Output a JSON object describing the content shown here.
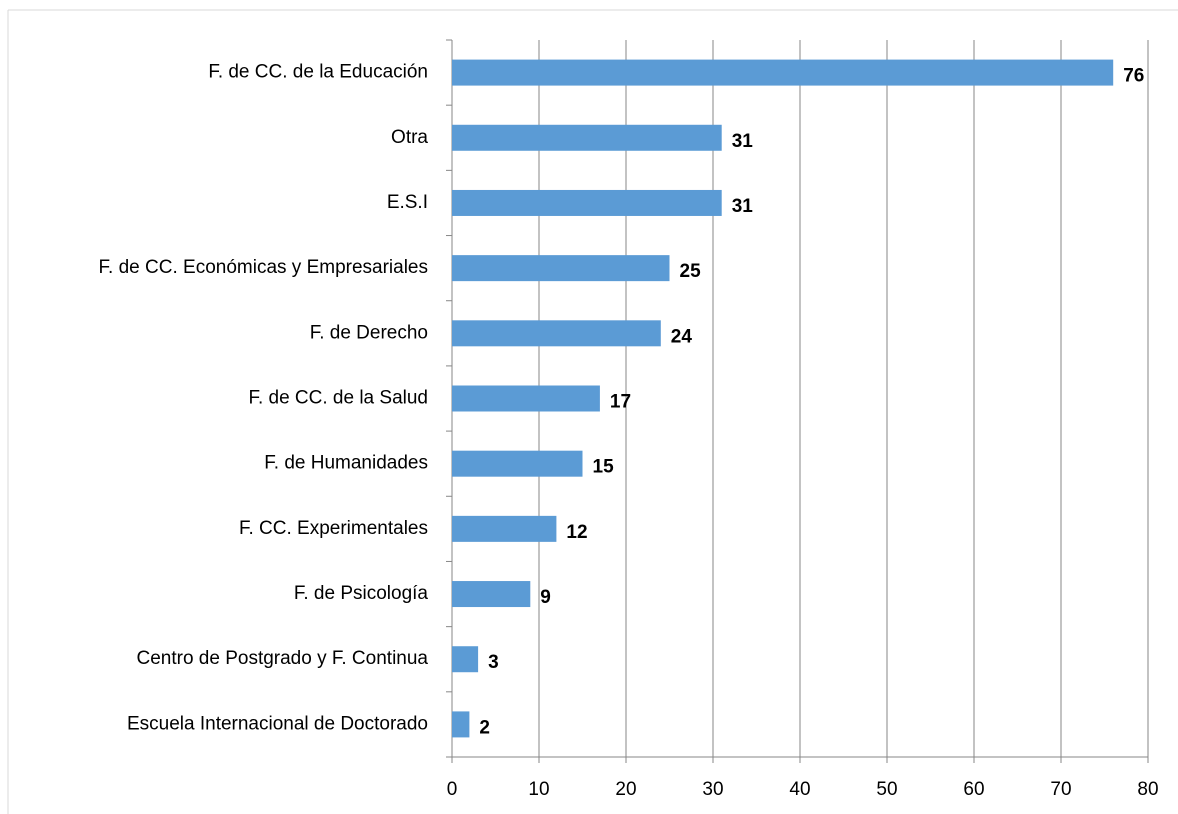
{
  "chart_data": {
    "type": "bar",
    "orientation": "horizontal",
    "categories": [
      "F. de CC. de la Educación",
      "Otra",
      "E.S.I",
      "F. de CC. Económicas y Empresariales",
      "F. de Derecho",
      "F. de CC. de la Salud",
      "F. de Humanidades",
      "F. CC. Experimentales",
      "F. de Psicología",
      "Centro de Postgrado y F. Continua",
      "Escuela Internacional de Doctorado"
    ],
    "values": [
      76,
      31,
      31,
      25,
      24,
      17,
      15,
      12,
      9,
      3,
      2
    ],
    "color": "#5b9bd5",
    "xlim": [
      0,
      80
    ],
    "xticks": [
      0,
      10,
      20,
      30,
      40,
      50,
      60,
      70,
      80
    ],
    "grid": true
  }
}
